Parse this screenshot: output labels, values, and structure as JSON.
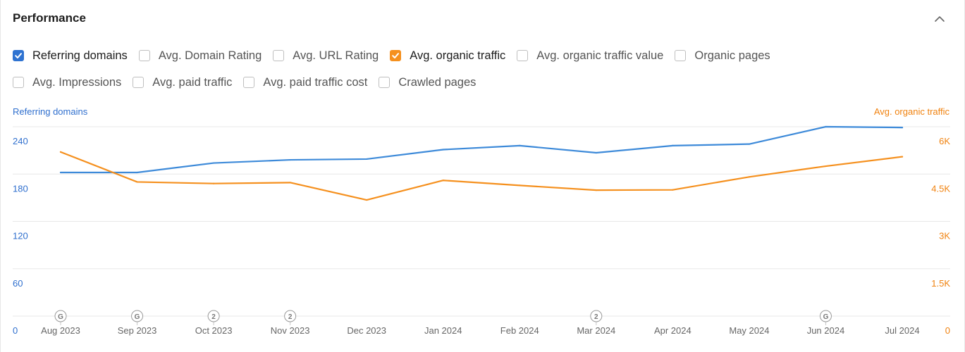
{
  "header": {
    "title": "Performance"
  },
  "colors": {
    "referring_domains": "#3d8ad9",
    "organic_traffic": "#f5901e",
    "grid": "#e8e8e8",
    "check_blue": "#2f73d1",
    "check_orange": "#f5901e"
  },
  "metrics": {
    "row1": [
      {
        "label": "Referring domains",
        "checked": true,
        "color": "#2f73d1"
      },
      {
        "label": "Avg. Domain Rating",
        "checked": false
      },
      {
        "label": "Avg. URL Rating",
        "checked": false
      },
      {
        "label": "Avg. organic traffic",
        "checked": true,
        "color": "#f5901e"
      },
      {
        "label": "Avg. organic traffic value",
        "checked": false
      },
      {
        "label": "Organic pages",
        "checked": false
      }
    ],
    "row2": [
      {
        "label": "Avg. Impressions",
        "checked": false
      },
      {
        "label": "Avg. paid traffic",
        "checked": false
      },
      {
        "label": "Avg. paid traffic cost",
        "checked": false
      },
      {
        "label": "Crawled pages",
        "checked": false
      }
    ]
  },
  "chart_data": {
    "type": "line",
    "categories": [
      "Aug 2023",
      "Sep 2023",
      "Oct 2023",
      "Nov 2023",
      "Dec 2023",
      "Jan 2024",
      "Feb 2024",
      "Mar 2024",
      "Apr 2024",
      "May 2024",
      "Jun 2024",
      "Jul 2024"
    ],
    "series": [
      {
        "name": "Referring domains",
        "axis": "left",
        "color": "#3d8ad9",
        "values": [
          182,
          182,
          194,
          198,
          199,
          211,
          216,
          207,
          216,
          218,
          240,
          239
        ]
      },
      {
        "name": "Avg. organic traffic",
        "axis": "right",
        "color": "#f5901e",
        "values": [
          5200,
          4250,
          4200,
          4230,
          3680,
          4300,
          4140,
          3990,
          4000,
          4410,
          4750,
          5050
        ]
      }
    ],
    "y_left": {
      "label": "Referring domains",
      "ticks": [
        "240",
        "180",
        "120",
        "60",
        "0"
      ],
      "range": [
        0,
        240
      ]
    },
    "y_right": {
      "label": "Avg. organic traffic",
      "ticks": [
        "6K",
        "4.5K",
        "3K",
        "1.5K",
        "0"
      ],
      "range": [
        0,
        6000
      ]
    },
    "annotations": [
      {
        "category": "Aug 2023",
        "label": "G"
      },
      {
        "category": "Sep 2023",
        "label": "G"
      },
      {
        "category": "Oct 2023",
        "label": "2"
      },
      {
        "category": "Nov 2023",
        "label": "2"
      },
      {
        "category": "Mar 2024",
        "label": "2"
      },
      {
        "category": "Jun 2024",
        "label": "G"
      }
    ],
    "grid": true
  }
}
